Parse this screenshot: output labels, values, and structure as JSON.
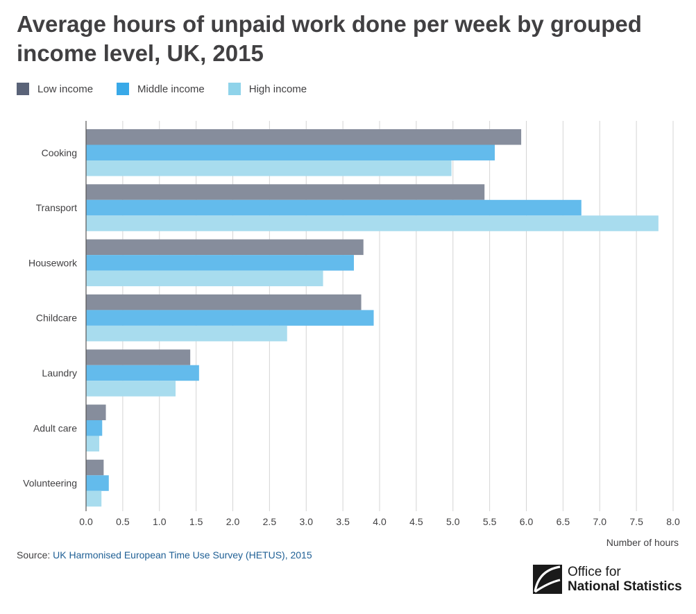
{
  "title": "Average hours of unpaid work done per week by grouped income level, UK, 2015",
  "legend": [
    {
      "label": "Low income",
      "color": "#5a6378"
    },
    {
      "label": "Middle income",
      "color": "#39a9e8"
    },
    {
      "label": "High income",
      "color": "#8fd3ea"
    }
  ],
  "source": {
    "prefix": "Source:",
    "link_text": "UK Harmonised European Time Use Survey (HETUS), 2015"
  },
  "logo": {
    "line1": "Office for",
    "line2": "National Statistics"
  },
  "chart_data": {
    "type": "bar",
    "orientation": "horizontal",
    "title": "Average hours of unpaid work done per week by grouped income level, UK, 2015",
    "xlabel": "Number of hours",
    "ylabel": "",
    "xlim": [
      0,
      8
    ],
    "ticks": [
      "0.0",
      "0.5",
      "1.0",
      "1.5",
      "2.0",
      "2.5",
      "3.0",
      "3.5",
      "4.0",
      "4.5",
      "5.0",
      "5.5",
      "6.0",
      "6.5",
      "7.0",
      "7.5",
      "8.0"
    ],
    "grid": true,
    "legend_position": "top-left",
    "categories": [
      "Cooking",
      "Transport",
      "Housework",
      "Childcare",
      "Laundry",
      "Adult care",
      "Volunteering"
    ],
    "series": [
      {
        "name": "Low income",
        "color": "#868d9c",
        "values": [
          5.93,
          5.43,
          3.78,
          3.75,
          1.42,
          0.27,
          0.24
        ]
      },
      {
        "name": "Middle income",
        "color": "#63bbec",
        "values": [
          5.57,
          6.75,
          3.65,
          3.92,
          1.54,
          0.22,
          0.31
        ]
      },
      {
        "name": "High income",
        "color": "#a8dcee",
        "values": [
          4.98,
          7.8,
          3.23,
          2.74,
          1.22,
          0.18,
          0.21
        ]
      }
    ]
  }
}
